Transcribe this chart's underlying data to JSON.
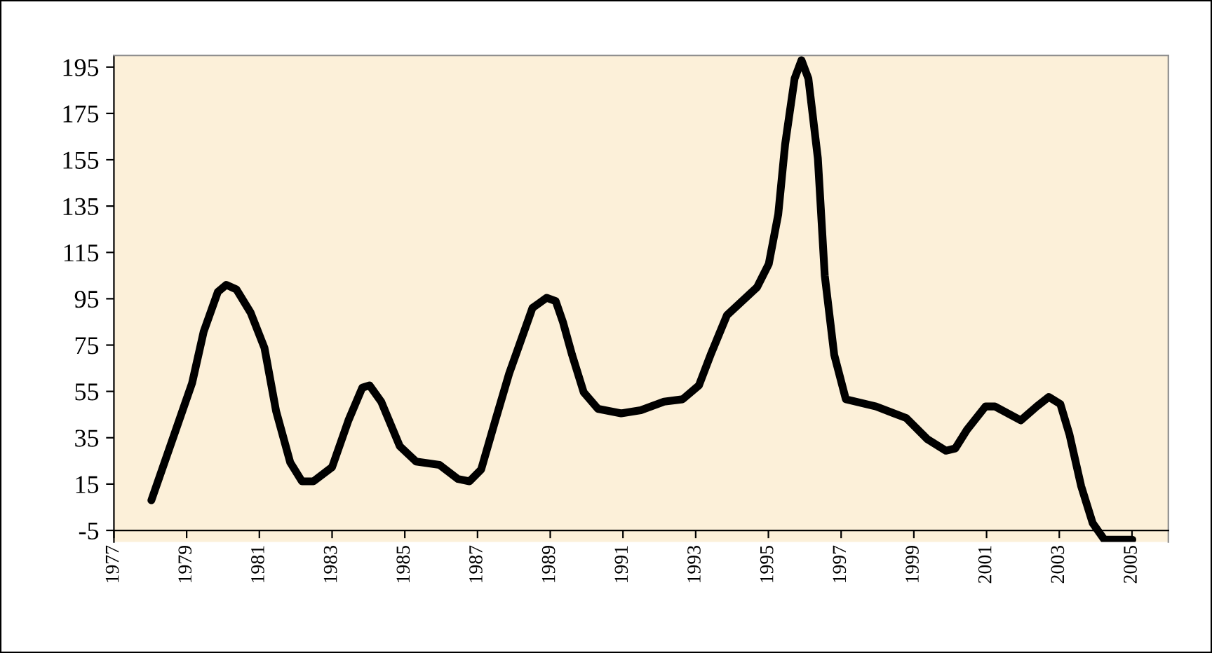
{
  "chart_data": {
    "type": "line",
    "xlim": [
      1977,
      2006
    ],
    "ylim": [
      -10,
      200
    ],
    "xticks": [
      1977,
      1979,
      1981,
      1983,
      1985,
      1987,
      1989,
      1991,
      1993,
      1995,
      1997,
      1999,
      2001,
      2003,
      2005
    ],
    "yticks": [
      -5,
      15,
      35,
      55,
      75,
      95,
      115,
      135,
      155,
      175,
      195
    ],
    "legend": false,
    "marker": "none",
    "line_style": "solid",
    "series": [
      {
        "color": "#000000",
        "x": [
          1978.03,
          1979.15,
          1979.47,
          1979.86,
          1980.09,
          1980.37,
          1980.76,
          1981.14,
          1981.46,
          1981.85,
          1982.17,
          1982.49,
          1983.0,
          1983.45,
          1983.83,
          1984.03,
          1984.35,
          1984.86,
          1985.31,
          1985.95,
          1986.46,
          1986.78,
          1987.1,
          1987.49,
          1987.87,
          1988.51,
          1988.9,
          1989.15,
          1989.35,
          1989.6,
          1989.92,
          1990.31,
          1990.95,
          1991.49,
          1992.13,
          1992.64,
          1993.09,
          1993.41,
          1993.86,
          1994.69,
          1995.01,
          1995.27,
          1995.46,
          1995.72,
          1995.91,
          1996.1,
          1996.36,
          1996.55,
          1996.81,
          1997.13,
          1997.96,
          1998.79,
          1999.37,
          1999.88,
          2000.14,
          2000.46,
          2000.97,
          2001.23,
          2001.94,
          2002.38,
          2002.71,
          2003.03,
          2003.28,
          2003.6,
          2003.92,
          2004.24,
          2005.01
        ],
        "values": [
          8,
          58.6,
          80.9,
          98,
          101,
          99,
          89,
          73.8,
          46.5,
          24.3,
          16.2,
          16.2,
          22.3,
          42.5,
          56.6,
          57.6,
          50.6,
          31.4,
          24.7,
          23.3,
          17.2,
          16.2,
          21.3,
          42.5,
          62.7,
          91,
          95.4,
          94,
          84.9,
          70.8,
          54.6,
          47.5,
          45.5,
          46.9,
          50.6,
          51.6,
          57.6,
          70.8,
          87.9,
          100,
          110,
          131.4,
          161.7,
          190,
          198,
          190,
          155.6,
          105,
          70.8,
          51.6,
          48.5,
          43.5,
          34.4,
          29.4,
          30.4,
          38.4,
          48.5,
          48.5,
          42.5,
          48.5,
          52.6,
          49.5,
          36.4,
          14.2,
          -1.9,
          -9,
          -9
        ]
      }
    ]
  }
}
